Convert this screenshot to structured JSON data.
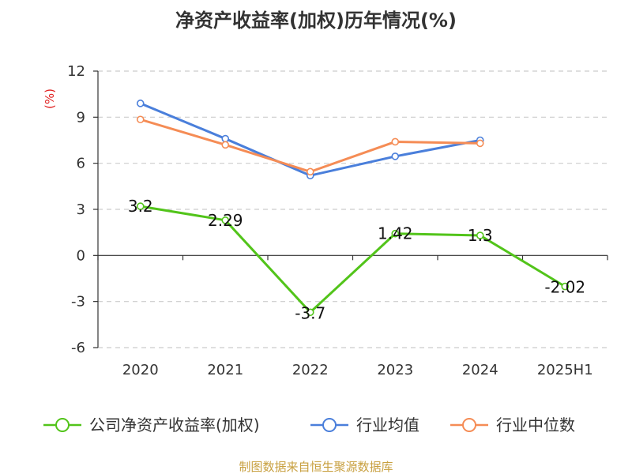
{
  "chart_data": {
    "type": "line",
    "title": "净资产收益率(加权)历年情况(%)",
    "ylabel": "(%)",
    "categories": [
      "2020",
      "2021",
      "2022",
      "2023",
      "2024",
      "2025H1"
    ],
    "y_ticks": [
      "12",
      "9",
      "6",
      "3",
      "0",
      "-3",
      "-6"
    ],
    "ylim": [
      -6,
      12
    ],
    "grid": true,
    "legend_position": "bottom",
    "series": [
      {
        "name": "公司净资产收益率(加权)",
        "color": "#52c41a",
        "values": [
          3.2,
          2.29,
          -3.7,
          1.42,
          1.3,
          -2.02
        ],
        "labels": [
          "3.2",
          "2.29",
          "-3.7",
          "1.42",
          "1.3",
          "-2.02"
        ]
      },
      {
        "name": "行业均值",
        "color": "#4a7fdb",
        "values": [
          9.9,
          7.6,
          5.2,
          6.45,
          7.5,
          null
        ]
      },
      {
        "name": "行业中位数",
        "color": "#f58c55",
        "values": [
          8.85,
          7.2,
          5.45,
          7.4,
          7.3,
          null
        ]
      }
    ],
    "source": "制图数据来自恒生聚源数据库"
  },
  "colors": {
    "unit_label": "#e02020",
    "source_text": "#c8a040",
    "grid": "#cccccc",
    "axis": "#333333"
  }
}
